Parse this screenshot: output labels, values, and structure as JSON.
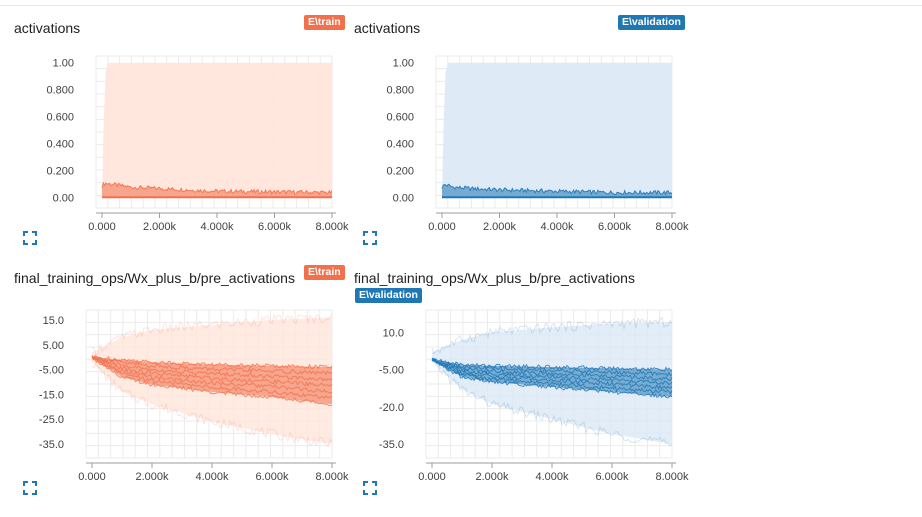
{
  "colors": {
    "train": "#f2704b",
    "train_band": "#ffe6db",
    "validation": "#1f77b4",
    "validation_band": "#dce9f6"
  },
  "cards": [
    {
      "title": "activations",
      "badge": "E\\train",
      "expand_icon": "expand-icon"
    },
    {
      "title": "activations",
      "badge": "E\\validation",
      "expand_icon": "expand-icon"
    },
    {
      "title": "final_training_ops/Wx_plus_b/pre_activations",
      "badge": "E\\train",
      "expand_icon": "expand-icon"
    },
    {
      "title": "final_training_ops/Wx_plus_b/pre_activations",
      "badge": "E\\validation",
      "expand_icon": "expand-icon"
    }
  ],
  "chart_data": [
    {
      "type": "area",
      "title": "activations",
      "series": [
        {
          "name": "E\\train"
        }
      ],
      "x_ticks": [
        "0.000",
        "2.000k",
        "4.000k",
        "6.000k",
        "8.000k"
      ],
      "y_ticks": [
        "0.00",
        "0.200",
        "0.400",
        "0.600",
        "0.800",
        "1.00"
      ],
      "xlim": [
        0,
        8000
      ],
      "ylim": [
        -0.05,
        1.05
      ],
      "grid": true,
      "band": {
        "x": [
          0,
          60,
          120,
          200,
          8000
        ],
        "upper": [
          0.03,
          0.55,
          0.92,
          1.0,
          1.0
        ],
        "lower": [
          0,
          0,
          0,
          0,
          0
        ]
      },
      "median": {
        "x": [
          0,
          100,
          400,
          1000,
          2000,
          4000,
          6000,
          8000
        ],
        "y": [
          0.07,
          0.09,
          0.08,
          0.06,
          0.05,
          0.03,
          0.025,
          0.02
        ]
      }
    },
    {
      "type": "area",
      "title": "activations",
      "series": [
        {
          "name": "E\\validation"
        }
      ],
      "x_ticks": [
        "0.000",
        "2.000k",
        "4.000k",
        "6.000k",
        "8.000k"
      ],
      "y_ticks": [
        "0.00",
        "0.200",
        "0.400",
        "0.600",
        "0.800",
        "1.00"
      ],
      "xlim": [
        0,
        8000
      ],
      "ylim": [
        -0.05,
        1.05
      ],
      "grid": true,
      "band": {
        "x": [
          0,
          60,
          120,
          200,
          8000
        ],
        "upper": [
          0.03,
          0.55,
          0.92,
          1.0,
          1.0
        ],
        "lower": [
          0,
          0,
          0,
          0,
          0
        ]
      },
      "median": {
        "x": [
          0,
          100,
          400,
          1000,
          2000,
          4000,
          6000,
          8000
        ],
        "y": [
          0.06,
          0.08,
          0.06,
          0.05,
          0.04,
          0.03,
          0.02,
          0.02
        ]
      }
    },
    {
      "type": "area",
      "title": "final_training_ops/Wx_plus_b/pre_activations",
      "series": [
        {
          "name": "E\\train"
        }
      ],
      "x_ticks": [
        "0.000",
        "2.000k",
        "4.000k",
        "6.000k",
        "8.000k"
      ],
      "y_ticks": [
        "-35.0",
        "-25.0",
        "-15.0",
        "-5.00",
        "5.00",
        "15.0"
      ],
      "xlim": [
        0,
        8000
      ],
      "ylim": [
        -39,
        19
      ],
      "grid": true,
      "band": {
        "x": [
          0,
          1000,
          2000,
          4000,
          6000,
          8000
        ],
        "upper": [
          2,
          8,
          11,
          13,
          15,
          16
        ],
        "lower": [
          -2,
          -14,
          -19,
          -26,
          -31,
          -35
        ]
      },
      "median": {
        "x": [
          0,
          1000,
          2000,
          4000,
          6000,
          8000
        ],
        "y": [
          0,
          -4,
          -6,
          -8,
          -9.5,
          -10.5
        ]
      },
      "spread": {
        "upper": [
          0,
          -1,
          -2,
          -3,
          -3.5,
          -4
        ],
        "lower": [
          0,
          -8,
          -11,
          -14,
          -16,
          -19
        ]
      }
    },
    {
      "type": "area",
      "title": "final_training_ops/Wx_plus_b/pre_activations",
      "series": [
        {
          "name": "E\\validation"
        }
      ],
      "x_ticks": [
        "0.000",
        "2.000k",
        "4.000k",
        "6.000k",
        "8.000k"
      ],
      "y_ticks": [
        "-35.0",
        "-20.0",
        "-5.00",
        "10.0"
      ],
      "xlim": [
        0,
        8000
      ],
      "ylim": [
        -39,
        19
      ],
      "grid": true,
      "band": {
        "x": [
          0,
          1000,
          2000,
          4000,
          6000,
          8000
        ],
        "upper": [
          2,
          7,
          10,
          12,
          13.5,
          14
        ],
        "lower": [
          -2,
          -13,
          -19,
          -25,
          -31,
          -35
        ]
      },
      "median": {
        "x": [
          0,
          1000,
          2000,
          4000,
          6000,
          8000
        ],
        "y": [
          -1,
          -5,
          -7,
          -8.5,
          -9.5,
          -10
        ]
      },
      "spread": {
        "upper": [
          -1,
          -3,
          -3.5,
          -4,
          -4.5,
          -5
        ],
        "lower": [
          -1,
          -8,
          -10,
          -12,
          -14,
          -16
        ]
      }
    }
  ]
}
